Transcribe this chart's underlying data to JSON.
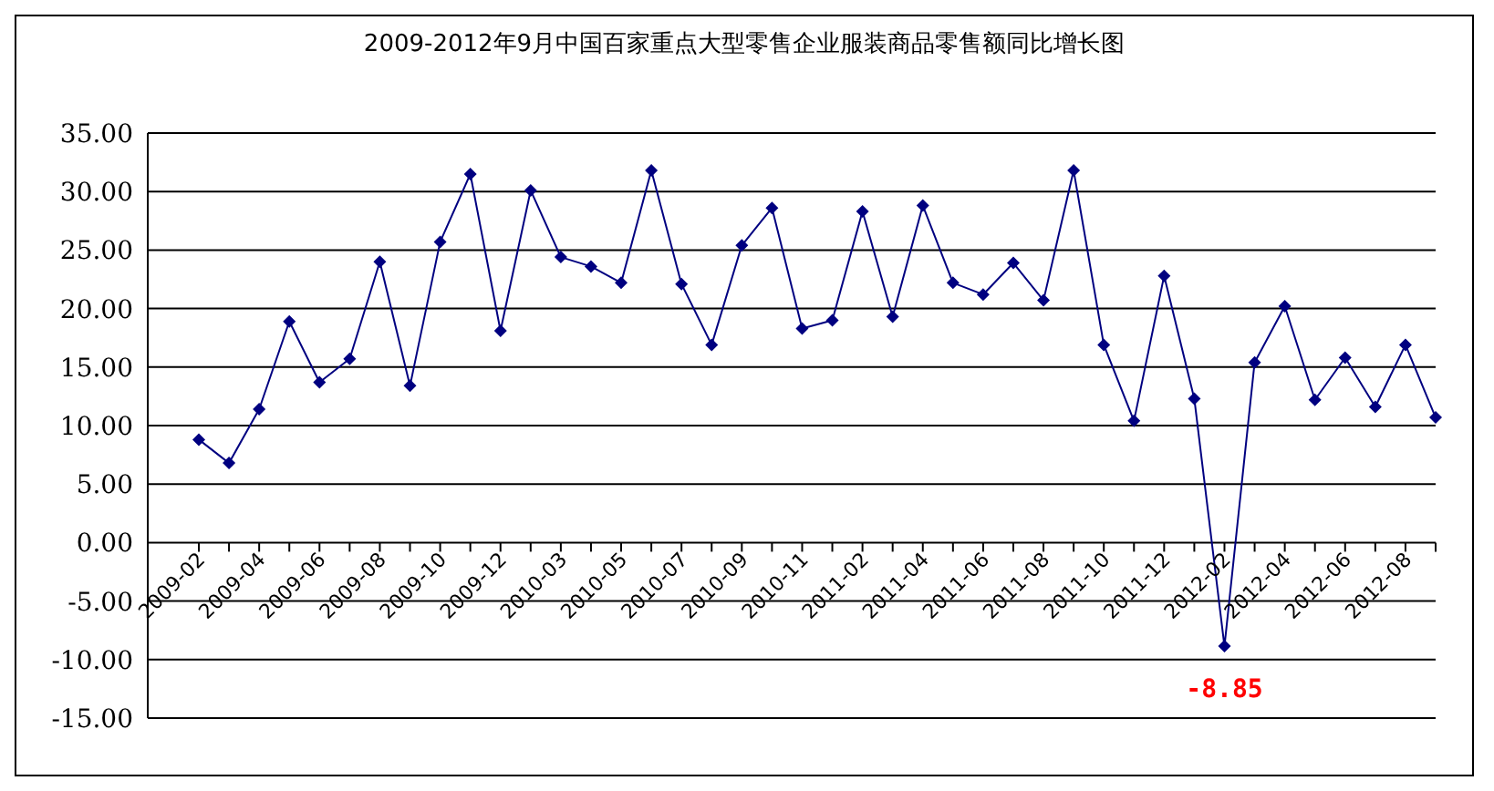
{
  "chart_data": {
    "type": "line",
    "title": "2009-2012年9月中国百家重点大型零售企业服装商品零售额同比增长图",
    "categories": [
      "2009-02",
      null,
      "2009-04",
      null,
      "2009-06",
      null,
      "2009-08",
      null,
      "2009-10",
      null,
      "2009-12",
      null,
      "2010-03",
      null,
      "2010-05",
      null,
      "2010-07",
      null,
      "2010-09",
      null,
      "2010-11",
      null,
      "2011-02",
      null,
      "2011-04",
      null,
      "2011-06",
      null,
      "2011-08",
      null,
      "2011-10",
      null,
      "2011-12",
      null,
      "2012-02",
      null,
      "2012-04",
      null,
      "2012-06",
      null,
      "2012-08",
      null
    ],
    "series": [
      {
        "color": "#000080",
        "values": [
          8.8,
          6.8,
          11.4,
          18.9,
          13.7,
          15.7,
          24.0,
          13.4,
          25.7,
          31.5,
          18.1,
          30.1,
          24.4,
          23.6,
          22.2,
          31.8,
          22.1,
          16.9,
          25.4,
          28.6,
          18.3,
          19.0,
          28.3,
          19.3,
          28.8,
          22.2,
          21.2,
          23.9,
          20.7,
          31.8,
          16.9,
          10.4,
          22.8,
          12.3,
          -8.85,
          15.4,
          20.2,
          12.2,
          15.8,
          11.6,
          16.9,
          10.7
        ],
        "value_labels": [
          null,
          null,
          null,
          null,
          null,
          null,
          null,
          null,
          null,
          null,
          null,
          null,
          null,
          null,
          null,
          null,
          null,
          null,
          null,
          null,
          null,
          null,
          null,
          null,
          null,
          null,
          null,
          null,
          null,
          null,
          null,
          null,
          null,
          null,
          "-8.85",
          null,
          null,
          null,
          null,
          null,
          null,
          null
        ]
      }
    ],
    "ylim": [
      -15,
      35
    ],
    "yticks": [
      {
        "value": -15,
        "label": "-15.00"
      },
      {
        "value": -10,
        "label": "-10.00"
      },
      {
        "value": -5,
        "label": "-5.00"
      },
      {
        "value": 0,
        "label": "0.00"
      },
      {
        "value": 5,
        "label": "5.00"
      },
      {
        "value": 10,
        "label": "10.00"
      },
      {
        "value": 15,
        "label": "15.00"
      },
      {
        "value": 20,
        "label": "20.00"
      },
      {
        "value": 25,
        "label": "25.00"
      },
      {
        "value": 30,
        "label": "30.00"
      },
      {
        "value": 35,
        "label": "35.00"
      }
    ],
    "grid": "y",
    "legend": false,
    "marker": "diamond",
    "line_style": "solid"
  }
}
